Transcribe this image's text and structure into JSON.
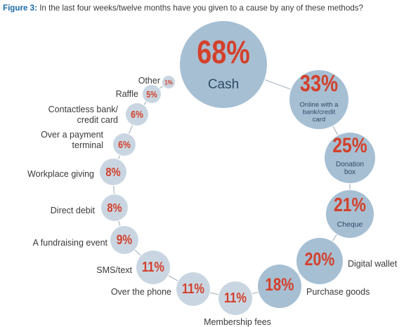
{
  "header": {
    "figure_label": "Figure 3:",
    "title_text": "In the last four weeks/twelve months have you given to a cause by any of these methods?"
  },
  "colors": {
    "bubble": "#a6bfd3",
    "bubble_small": "#c9d6e2",
    "percent": "#d4402a",
    "connector": "#9aa7b3"
  },
  "chart_data": {
    "type": "bubble",
    "title": "In the last four weeks/twelve months have you given to a cause by any of these methods?",
    "unit": "%",
    "categories": [
      "Cash",
      "Online with a bank/credit card",
      "Donation box",
      "Cheque",
      "Digital wallet",
      "Purchase goods",
      "Membership fees",
      "Over the phone",
      "SMS/text",
      "A fundraising event",
      "Direct debit",
      "Workplace giving",
      "Over a payment terminal",
      "Contactless bank/ credit card",
      "Raffle",
      "Other"
    ],
    "values": [
      68,
      33,
      25,
      21,
      20,
      18,
      11,
      11,
      11,
      9,
      8,
      8,
      6,
      6,
      5,
      1
    ],
    "labels": [
      "68%",
      "33%",
      "25%",
      "21%",
      "20%",
      "18%",
      "11%",
      "11%",
      "11%",
      "9%",
      "8%",
      "8%",
      "6%",
      "6%",
      "5%",
      "1%"
    ]
  }
}
